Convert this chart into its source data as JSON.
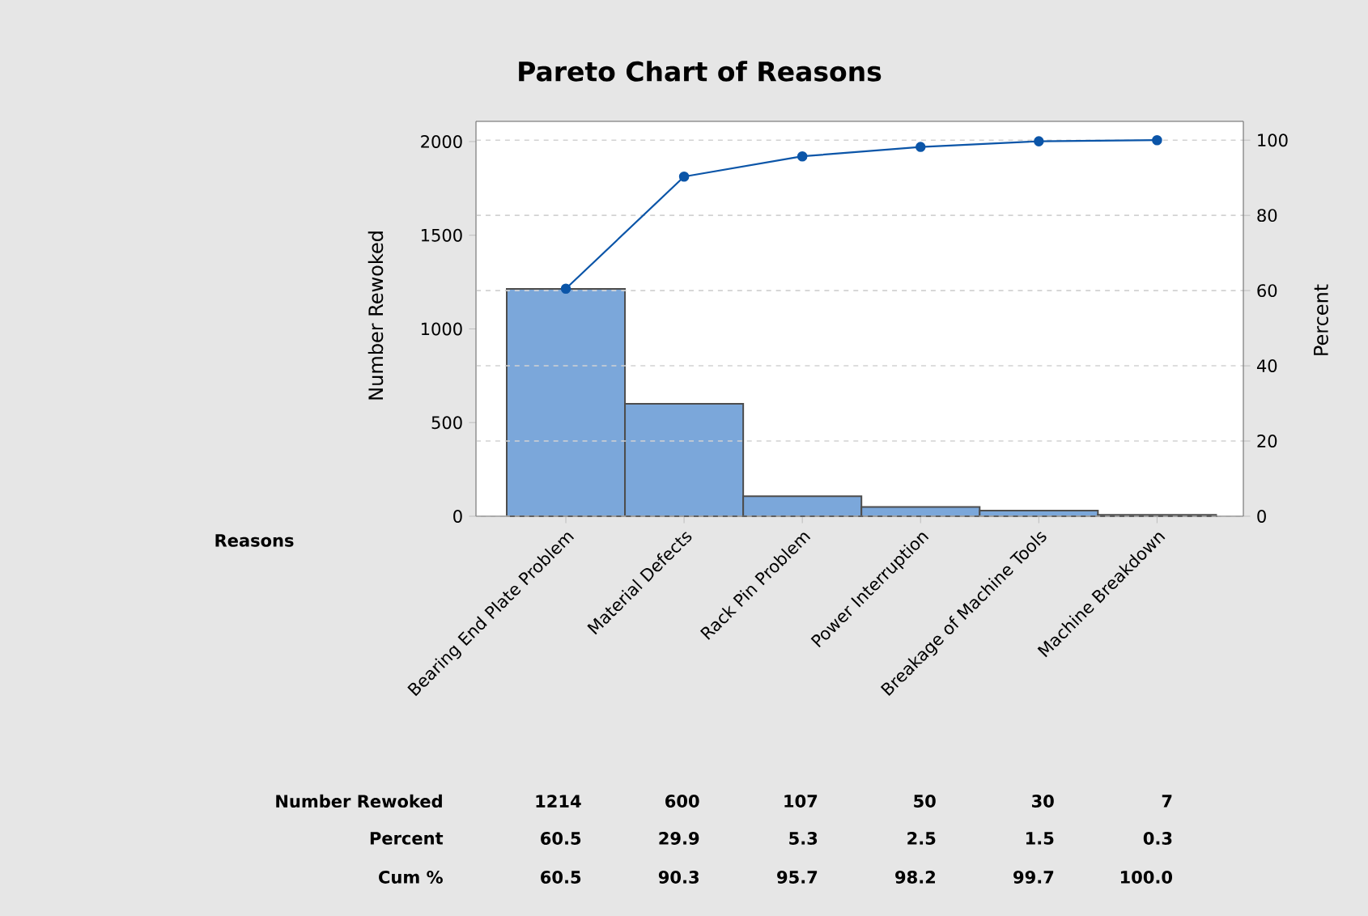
{
  "chart_data": {
    "type": "bar",
    "title": "Pareto Chart of Reasons",
    "ylabel": "Number Rewoked",
    "y2label": "Percent",
    "categories": [
      "Bearing End Plate Problem",
      "Material Defects",
      "Rack Pin Problem",
      "Power Interruption",
      "Breakage of Machine Tools",
      "Machine Breakdown"
    ],
    "series": [
      {
        "color": "#7ba7da",
        "values": [
          1214,
          600,
          107,
          50,
          30,
          7
        ],
        "value_labels": [
          "1214",
          "600",
          "107",
          "50",
          "30",
          "7"
        ]
      },
      {
        "type": "line",
        "axis": "y2",
        "color": "#0b55a8",
        "marker": "circle",
        "line_style": "solid",
        "values": [
          60.5,
          90.3,
          95.7,
          98.2,
          99.7,
          100.0
        ],
        "value_labels": [
          "60.5",
          "90.3",
          "95.7",
          "98.2",
          "99.7",
          "100.0"
        ]
      }
    ],
    "annotations": [
      "Reasons",
      "Number Rewoked",
      "Percent",
      "60.5",
      "29.9",
      "5.3",
      "2.5",
      "1.5",
      "0.3",
      "Cum %"
    ],
    "ylim": [
      0,
      2108
    ],
    "yticks": [
      0,
      500,
      1000,
      1500,
      2000
    ],
    "y2lim": [
      0,
      105
    ],
    "y2ticks": [
      0,
      20,
      40,
      60,
      80,
      100
    ],
    "grid": "y"
  }
}
